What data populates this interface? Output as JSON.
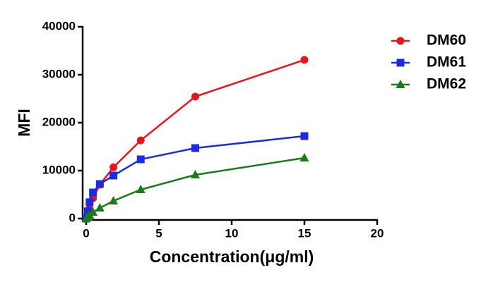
{
  "chart_data": {
    "type": "line",
    "x_label": "Concentration(μg/ml)",
    "y_label": "MFI",
    "xlim": [
      0,
      20
    ],
    "xticks": [
      0,
      5,
      10,
      15,
      20
    ],
    "ylim": [
      0,
      40000
    ],
    "yticks": [
      0,
      10000,
      20000,
      30000,
      40000
    ],
    "series": [
      {
        "name": "DM60",
        "color": "#e8141b",
        "marker": "circle",
        "x": [
          0,
          0.117,
          0.234,
          0.469,
          0.938,
          1.875,
          3.75,
          7.5,
          15
        ],
        "values": [
          0,
          1000,
          2060,
          4260,
          7060,
          10700,
          16300,
          25440,
          33100
        ]
      },
      {
        "name": "DM61",
        "color": "#1c2be0",
        "marker": "square",
        "x": [
          0,
          0.117,
          0.234,
          0.469,
          0.938,
          1.875,
          3.75,
          7.5,
          15
        ],
        "values": [
          0,
          1500,
          3400,
          5440,
          7200,
          8970,
          12350,
          14700,
          17200
        ]
      },
      {
        "name": "DM62",
        "color": "#1a7a1a",
        "marker": "triangle",
        "x": [
          0,
          0.117,
          0.234,
          0.469,
          0.938,
          1.875,
          3.75,
          7.5,
          15
        ],
        "values": [
          0,
          300,
          700,
          1320,
          2200,
          3680,
          6030,
          9120,
          12650
        ]
      }
    ]
  }
}
